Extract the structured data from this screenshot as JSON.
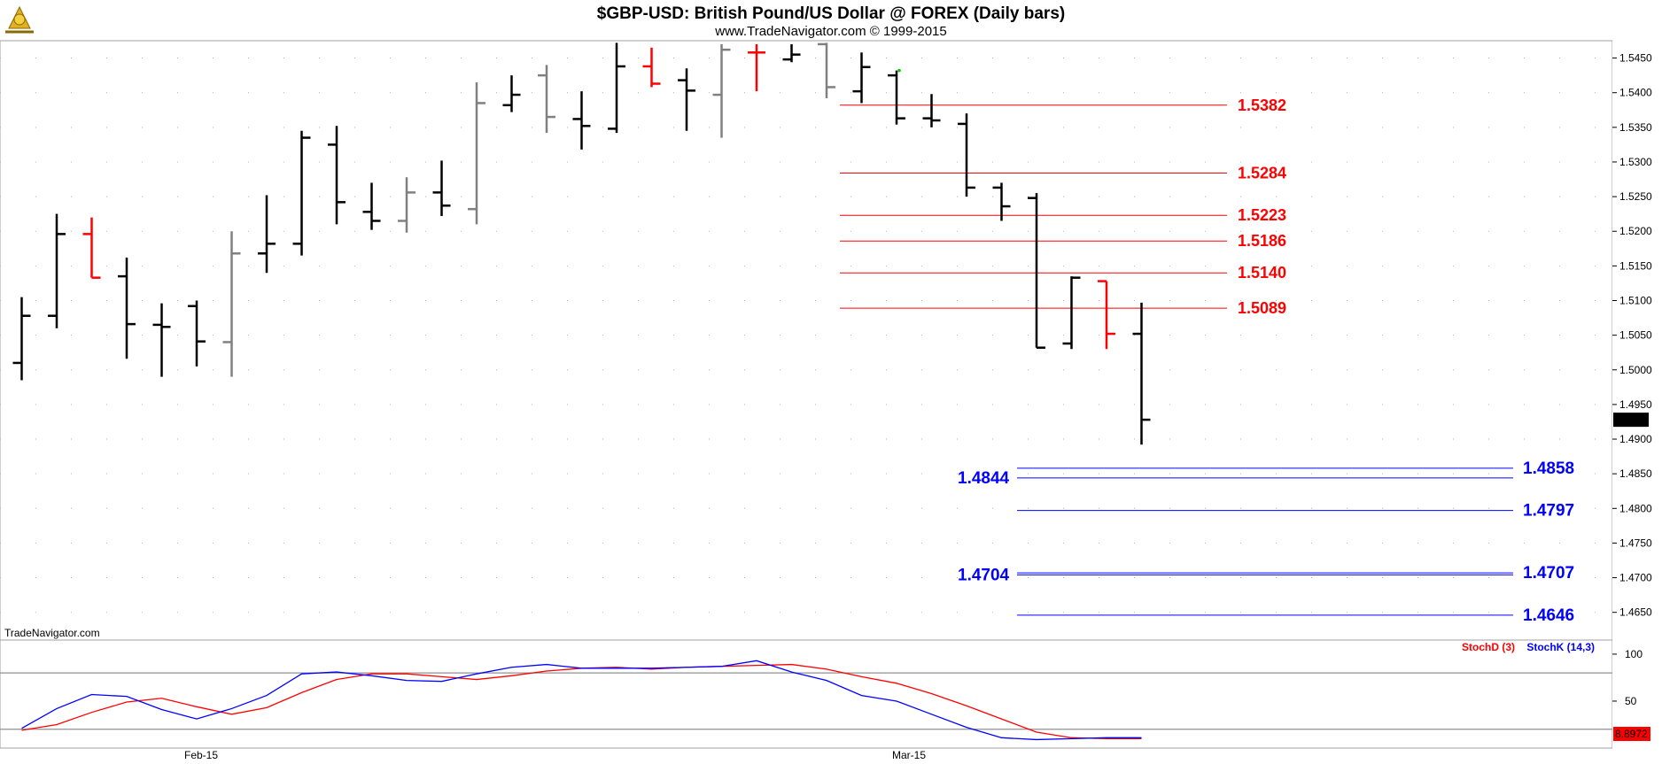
{
  "header": {
    "title": "$GBP-USD:  British Pound/US Dollar @ FOREX  (Daily bars)",
    "subtitle": "www.TradeNavigator.com © 1999-2015",
    "logo_icon": "sextant-logo-icon"
  },
  "watermark": "TradeNavigator.com",
  "colors": {
    "bar_default": "#000000",
    "bar_gray": "#808080",
    "bar_red": "#ff0000",
    "resistance": "#ff0000",
    "support": "#0000ff",
    "stoch_d": "#ff0000",
    "stoch_k": "#0000ff"
  },
  "chart_data": [
    {
      "type": "ohlc",
      "title": "$GBP-USD:  British Pound/US Dollar @ FOREX  (Daily bars)",
      "ylim": [
        1.461,
        1.5475
      ],
      "y_ticks": [
        "1.5450",
        "1.5400",
        "1.5350",
        "1.5300",
        "1.5250",
        "1.5200",
        "1.5150",
        "1.5100",
        "1.5050",
        "1.5000",
        "1.4950",
        "1.4900",
        "1.4850",
        "1.4800",
        "1.4750",
        "1.4700",
        "1.4650"
      ],
      "x_ticks": [
        "Feb-15",
        "Mar-15"
      ],
      "last_price_label": "1.4928",
      "grid": "dotted",
      "bars": [
        {
          "o": 1.501,
          "h": 1.5105,
          "l": 1.4985,
          "c": 1.5078,
          "color": "black"
        },
        {
          "o": 1.5078,
          "h": 1.5225,
          "l": 1.506,
          "c": 1.5196,
          "color": "black"
        },
        {
          "o": 1.5196,
          "h": 1.522,
          "l": 1.5133,
          "c": 1.5133,
          "color": "red"
        },
        {
          "o": 1.5135,
          "h": 1.5162,
          "l": 1.5016,
          "c": 1.5066,
          "color": "black"
        },
        {
          "o": 1.5065,
          "h": 1.5096,
          "l": 1.499,
          "c": 1.5062,
          "color": "black"
        },
        {
          "o": 1.5092,
          "h": 1.51,
          "l": 1.5005,
          "c": 1.5041,
          "color": "black"
        },
        {
          "o": 1.504,
          "h": 1.52,
          "l": 1.499,
          "c": 1.5168,
          "color": "gray"
        },
        {
          "o": 1.5168,
          "h": 1.5252,
          "l": 1.514,
          "c": 1.5182,
          "color": "black"
        },
        {
          "o": 1.5182,
          "h": 1.5345,
          "l": 1.5165,
          "c": 1.5335,
          "color": "black"
        },
        {
          "o": 1.5325,
          "h": 1.5352,
          "l": 1.521,
          "c": 1.5242,
          "color": "black"
        },
        {
          "o": 1.5228,
          "h": 1.527,
          "l": 1.5202,
          "c": 1.5215,
          "color": "black"
        },
        {
          "o": 1.5215,
          "h": 1.5278,
          "l": 1.5198,
          "c": 1.5256,
          "color": "gray"
        },
        {
          "o": 1.5256,
          "h": 1.5302,
          "l": 1.5222,
          "c": 1.5237,
          "color": "black"
        },
        {
          "o": 1.5232,
          "h": 1.5415,
          "l": 1.521,
          "c": 1.5385,
          "color": "gray"
        },
        {
          "o": 1.5382,
          "h": 1.5425,
          "l": 1.5372,
          "c": 1.5397,
          "color": "black"
        },
        {
          "o": 1.5425,
          "h": 1.544,
          "l": 1.5342,
          "c": 1.5365,
          "color": "gray"
        },
        {
          "o": 1.5362,
          "h": 1.5402,
          "l": 1.5318,
          "c": 1.5352,
          "color": "black"
        },
        {
          "o": 1.5348,
          "h": 1.5472,
          "l": 1.5342,
          "c": 1.5438,
          "color": "black"
        },
        {
          "o": 1.5438,
          "h": 1.5465,
          "l": 1.5408,
          "c": 1.5413,
          "color": "red"
        },
        {
          "o": 1.5418,
          "h": 1.5435,
          "l": 1.5345,
          "c": 1.5403,
          "color": "black"
        },
        {
          "o": 1.5397,
          "h": 1.547,
          "l": 1.5335,
          "c": 1.5462,
          "color": "gray"
        },
        {
          "o": 1.5458,
          "h": 1.547,
          "l": 1.5402,
          "c": 1.5458,
          "color": "red"
        },
        {
          "o": 1.5448,
          "h": 1.547,
          "l": 1.5444,
          "c": 1.5455,
          "color": "black"
        },
        {
          "o": 1.547,
          "h": 1.5472,
          "l": 1.5392,
          "c": 1.5408,
          "color": "gray"
        },
        {
          "o": 1.5402,
          "h": 1.5458,
          "l": 1.5385,
          "c": 1.5437,
          "color": "black"
        },
        {
          "o": 1.5425,
          "h": 1.5432,
          "l": 1.5354,
          "c": 1.5363,
          "color": "black"
        },
        {
          "o": 1.5363,
          "h": 1.5398,
          "l": 1.535,
          "c": 1.536,
          "color": "black"
        },
        {
          "o": 1.5355,
          "h": 1.537,
          "l": 1.525,
          "c": 1.5263,
          "color": "black"
        },
        {
          "o": 1.5263,
          "h": 1.527,
          "l": 1.5215,
          "c": 1.5236,
          "color": "black"
        },
        {
          "o": 1.5248,
          "h": 1.5255,
          "l": 1.5032,
          "c": 1.5032,
          "color": "black"
        },
        {
          "o": 1.5038,
          "h": 1.5135,
          "l": 1.503,
          "c": 1.5133,
          "color": "black"
        },
        {
          "o": 1.5128,
          "h": 1.5128,
          "l": 1.503,
          "c": 1.5052,
          "color": "red"
        },
        {
          "o": 1.5052,
          "h": 1.5097,
          "l": 1.4892,
          "c": 1.4928,
          "color": "black"
        }
      ],
      "resistance_levels": [
        {
          "value": 1.5382,
          "label": "1.5382"
        },
        {
          "value": 1.5284,
          "label": "1.5284"
        },
        {
          "value": 1.5223,
          "label": "1.5223"
        },
        {
          "value": 1.5186,
          "label": "1.5186"
        },
        {
          "value": 1.514,
          "label": "1.5140"
        },
        {
          "value": 1.5089,
          "label": "1.5089"
        }
      ],
      "support_levels": [
        {
          "value": 1.4858,
          "label": "1.4858",
          "side": "right"
        },
        {
          "value": 1.4844,
          "label": "1.4844",
          "side": "left"
        },
        {
          "value": 1.4797,
          "label": "1.4797",
          "side": "right"
        },
        {
          "value": 1.4707,
          "label": "1.4707",
          "side": "right"
        },
        {
          "value": 1.4704,
          "label": "1.4704",
          "side": "left"
        },
        {
          "value": 1.4646,
          "label": "1.4646",
          "side": "right"
        }
      ]
    },
    {
      "type": "line",
      "title": "",
      "ylim": [
        0,
        115
      ],
      "y_ticks": [
        "100",
        "50"
      ],
      "reference_lines": [
        20,
        80
      ],
      "last_value_label": "8.8972",
      "series": [
        {
          "name": "StochD (3)",
          "values": [
            19,
            25,
            38,
            49,
            53,
            44,
            36,
            43,
            59,
            73,
            79,
            79,
            76,
            73,
            77,
            82,
            85,
            86,
            84,
            86,
            87,
            88,
            89,
            84,
            76,
            69,
            58,
            45,
            31,
            17,
            11,
            10,
            10
          ]
        },
        {
          "name": "StochK (14,3)",
          "values": [
            21,
            42,
            57,
            55,
            41,
            31,
            42,
            56,
            79,
            81,
            77,
            72,
            71,
            79,
            86,
            89,
            85,
            85,
            85,
            86,
            87,
            93,
            81,
            72,
            56,
            50,
            36,
            22,
            11,
            9,
            10,
            11,
            11
          ]
        }
      ]
    }
  ]
}
